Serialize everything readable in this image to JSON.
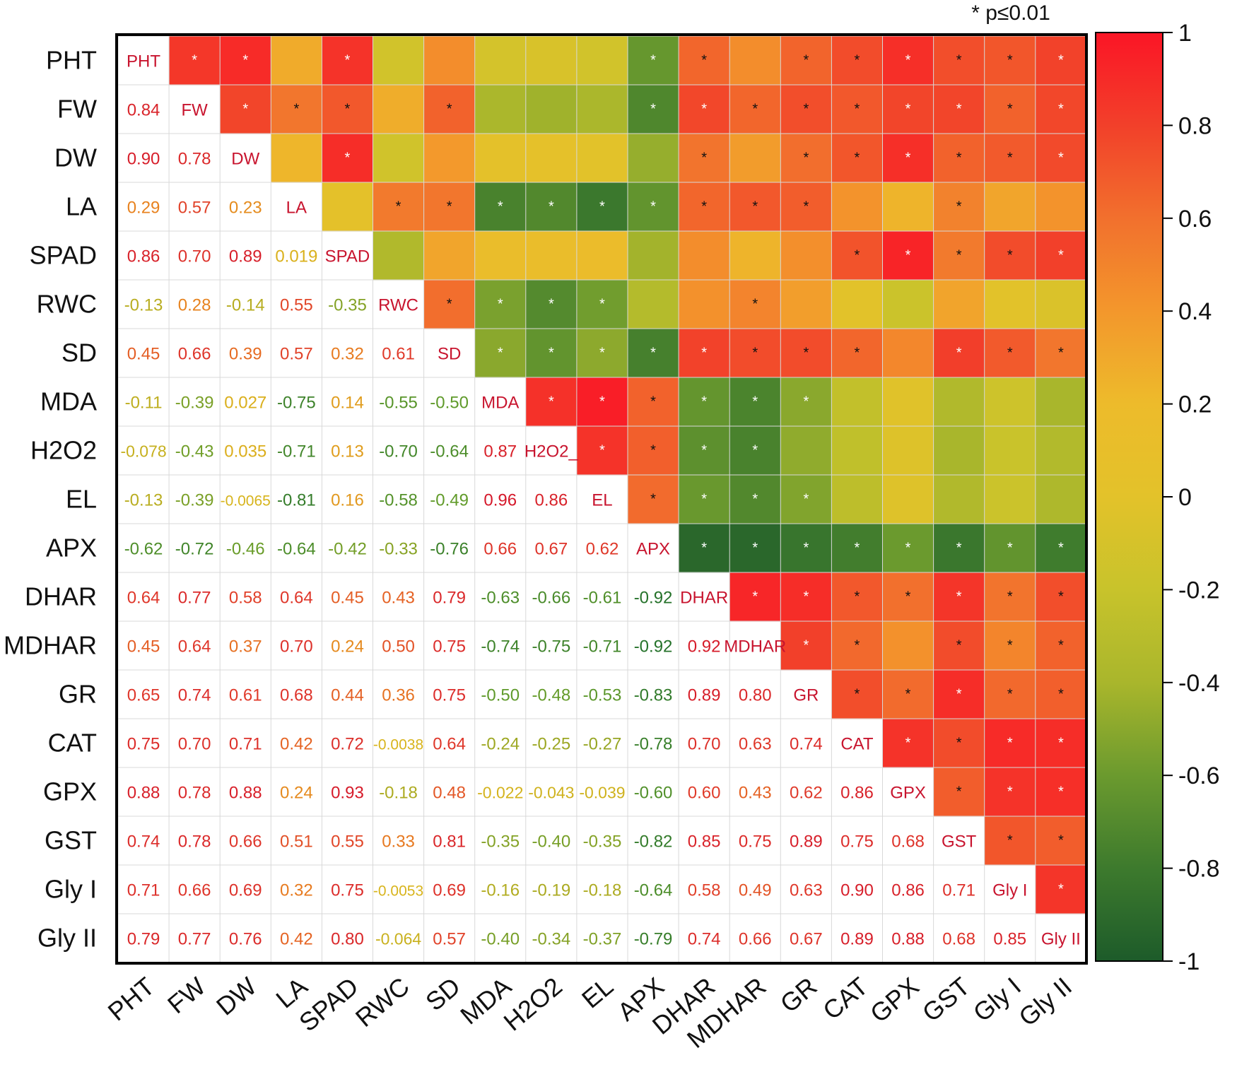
{
  "chart_data": {
    "type": "heatmap",
    "title": "",
    "significance_note": "* p≤0.01",
    "star_symbol": "*",
    "variables": [
      "PHT",
      "FW",
      "DW",
      "LA",
      "SPAD",
      "RWC",
      "SD",
      "MDA",
      "H2O2",
      "EL",
      "APX",
      "DHAR",
      "MDHAR",
      "GR",
      "CAT",
      "GPX",
      "GST",
      "Gly I",
      "Gly II"
    ],
    "diagonal_labels": [
      "PHT",
      "FW",
      "DW",
      "LA",
      "SPAD",
      "RWC",
      "SD",
      "MDA",
      "H2O2_",
      "EL",
      "APX",
      "DHAR",
      "MDHAR",
      "GR",
      "CAT",
      "GPX",
      "GST",
      "Gly I",
      "Gly II"
    ],
    "lower_triangle_values": [
      [],
      [
        "0.84"
      ],
      [
        "0.90",
        "0.78"
      ],
      [
        "0.29",
        "0.57",
        "0.23"
      ],
      [
        "0.86",
        "0.70",
        "0.89",
        "0.019"
      ],
      [
        "-0.13",
        "0.28",
        "-0.14",
        "0.55",
        "-0.35"
      ],
      [
        "0.45",
        "0.66",
        "0.39",
        "0.57",
        "0.32",
        "0.61"
      ],
      [
        "-0.11",
        "-0.39",
        "0.027",
        "-0.75",
        "0.14",
        "-0.55",
        "-0.50"
      ],
      [
        "-0.078",
        "-0.43",
        "0.035",
        "-0.71",
        "0.13",
        "-0.70",
        "-0.64",
        "0.87"
      ],
      [
        "-0.13",
        "-0.39",
        "-0.0065",
        "-0.81",
        "0.16",
        "-0.58",
        "-0.49",
        "0.96",
        "0.86"
      ],
      [
        "-0.62",
        "-0.72",
        "-0.46",
        "-0.64",
        "-0.42",
        "-0.33",
        "-0.76",
        "0.66",
        "0.67",
        "0.62"
      ],
      [
        "0.64",
        "0.77",
        "0.58",
        "0.64",
        "0.45",
        "0.43",
        "0.79",
        "-0.63",
        "-0.66",
        "-0.61",
        "-0.92"
      ],
      [
        "0.45",
        "0.64",
        "0.37",
        "0.70",
        "0.24",
        "0.50",
        "0.75",
        "-0.74",
        "-0.75",
        "-0.71",
        "-0.92",
        "0.92"
      ],
      [
        "0.65",
        "0.74",
        "0.61",
        "0.68",
        "0.44",
        "0.36",
        "0.75",
        "-0.50",
        "-0.48",
        "-0.53",
        "-0.83",
        "0.89",
        "0.80"
      ],
      [
        "0.75",
        "0.70",
        "0.71",
        "0.42",
        "0.72",
        "-0.0038",
        "0.64",
        "-0.24",
        "-0.25",
        "-0.27",
        "-0.78",
        "0.70",
        "0.63",
        "0.74"
      ],
      [
        "0.88",
        "0.78",
        "0.88",
        "0.24",
        "0.93",
        "-0.18",
        "0.48",
        "-0.022",
        "-0.043",
        "-0.039",
        "-0.60",
        "0.60",
        "0.43",
        "0.62",
        "0.86"
      ],
      [
        "0.74",
        "0.78",
        "0.66",
        "0.51",
        "0.55",
        "0.33",
        "0.81",
        "-0.35",
        "-0.40",
        "-0.35",
        "-0.82",
        "0.85",
        "0.75",
        "0.89",
        "0.75",
        "0.68"
      ],
      [
        "0.71",
        "0.66",
        "0.69",
        "0.32",
        "0.75",
        "-0.0053",
        "0.69",
        "-0.16",
        "-0.19",
        "-0.18",
        "-0.64",
        "0.58",
        "0.49",
        "0.63",
        "0.90",
        "0.86",
        "0.71"
      ],
      [
        "0.79",
        "0.77",
        "0.76",
        "0.42",
        "0.80",
        "-0.064",
        "0.57",
        "-0.40",
        "-0.34",
        "-0.37",
        "-0.79",
        "0.74",
        "0.66",
        "0.67",
        "0.89",
        "0.88",
        "0.68",
        "0.85"
      ]
    ],
    "significant_pairs": [
      [
        0,
        1
      ],
      [
        0,
        2
      ],
      [
        0,
        4
      ],
      [
        0,
        10
      ],
      [
        0,
        11
      ],
      [
        0,
        13
      ],
      [
        0,
        14
      ],
      [
        0,
        15
      ],
      [
        0,
        16
      ],
      [
        0,
        17
      ],
      [
        0,
        18
      ],
      [
        1,
        2
      ],
      [
        1,
        3
      ],
      [
        1,
        4
      ],
      [
        1,
        6
      ],
      [
        1,
        10
      ],
      [
        1,
        11
      ],
      [
        1,
        12
      ],
      [
        1,
        13
      ],
      [
        1,
        14
      ],
      [
        1,
        15
      ],
      [
        1,
        16
      ],
      [
        1,
        17
      ],
      [
        1,
        18
      ],
      [
        2,
        4
      ],
      [
        2,
        11
      ],
      [
        2,
        13
      ],
      [
        2,
        14
      ],
      [
        2,
        15
      ],
      [
        2,
        16
      ],
      [
        2,
        17
      ],
      [
        2,
        18
      ],
      [
        3,
        5
      ],
      [
        3,
        6
      ],
      [
        3,
        7
      ],
      [
        3,
        8
      ],
      [
        3,
        9
      ],
      [
        3,
        10
      ],
      [
        3,
        11
      ],
      [
        3,
        12
      ],
      [
        3,
        13
      ],
      [
        3,
        16
      ],
      [
        4,
        14
      ],
      [
        4,
        15
      ],
      [
        4,
        16
      ],
      [
        4,
        17
      ],
      [
        4,
        18
      ],
      [
        5,
        6
      ],
      [
        5,
        7
      ],
      [
        5,
        8
      ],
      [
        5,
        9
      ],
      [
        5,
        12
      ],
      [
        6,
        7
      ],
      [
        6,
        8
      ],
      [
        6,
        9
      ],
      [
        6,
        10
      ],
      [
        6,
        11
      ],
      [
        6,
        12
      ],
      [
        6,
        13
      ],
      [
        6,
        14
      ],
      [
        6,
        16
      ],
      [
        6,
        17
      ],
      [
        6,
        18
      ],
      [
        7,
        8
      ],
      [
        7,
        9
      ],
      [
        7,
        10
      ],
      [
        7,
        11
      ],
      [
        7,
        12
      ],
      [
        7,
        13
      ],
      [
        8,
        9
      ],
      [
        8,
        10
      ],
      [
        8,
        11
      ],
      [
        8,
        12
      ],
      [
        9,
        10
      ],
      [
        9,
        11
      ],
      [
        9,
        12
      ],
      [
        9,
        13
      ],
      [
        10,
        11
      ],
      [
        10,
        12
      ],
      [
        10,
        13
      ],
      [
        10,
        14
      ],
      [
        10,
        15
      ],
      [
        10,
        16
      ],
      [
        10,
        17
      ],
      [
        10,
        18
      ],
      [
        11,
        12
      ],
      [
        11,
        13
      ],
      [
        11,
        14
      ],
      [
        11,
        15
      ],
      [
        11,
        16
      ],
      [
        11,
        17
      ],
      [
        11,
        18
      ],
      [
        12,
        13
      ],
      [
        12,
        14
      ],
      [
        12,
        16
      ],
      [
        12,
        17
      ],
      [
        12,
        18
      ],
      [
        13,
        14
      ],
      [
        13,
        15
      ],
      [
        13,
        16
      ],
      [
        13,
        17
      ],
      [
        13,
        18
      ],
      [
        14,
        15
      ],
      [
        14,
        16
      ],
      [
        14,
        17
      ],
      [
        14,
        18
      ],
      [
        15,
        16
      ],
      [
        15,
        17
      ],
      [
        15,
        18
      ],
      [
        16,
        17
      ],
      [
        16,
        18
      ],
      [
        17,
        18
      ]
    ],
    "colorbar": {
      "min": -1,
      "max": 1,
      "ticks": [
        "1",
        "0.8",
        "0.6",
        "0.4",
        "0.2",
        "0",
        "-0.2",
        "-0.4",
        "-0.6",
        "-0.8",
        "-1"
      ],
      "tick_values": [
        1,
        0.8,
        0.6,
        0.4,
        0.2,
        0,
        -0.2,
        -0.4,
        -0.6,
        -0.8,
        -1
      ],
      "stops": [
        {
          "value": -1.0,
          "color": "#1d5b2a"
        },
        {
          "value": -0.8,
          "color": "#3d7a2d"
        },
        {
          "value": -0.6,
          "color": "#6b9a2e"
        },
        {
          "value": -0.4,
          "color": "#a9b62c"
        },
        {
          "value": -0.2,
          "color": "#c8c32b"
        },
        {
          "value": 0.0,
          "color": "#e3c22a"
        },
        {
          "value": 0.2,
          "color": "#edbb2b"
        },
        {
          "value": 0.4,
          "color": "#f3972c"
        },
        {
          "value": 0.6,
          "color": "#f2702d"
        },
        {
          "value": 0.8,
          "color": "#f2402a"
        },
        {
          "value": 1.0,
          "color": "#fb1526"
        }
      ],
      "text_stops": [
        {
          "value": -1.0,
          "color": "#1a6a2a"
        },
        {
          "value": -0.5,
          "color": "#5f9a2a"
        },
        {
          "value": 0.0,
          "color": "#d9b41c"
        },
        {
          "value": 0.3,
          "color": "#e8801f"
        },
        {
          "value": 0.6,
          "color": "#e03b2a"
        },
        {
          "value": 1.0,
          "color": "#d4142a"
        }
      ]
    },
    "colors": {
      "label_text": "#c8142e",
      "grid_line": "#d8d8d8",
      "frame": "#000000",
      "axis_text": "#111111"
    }
  }
}
